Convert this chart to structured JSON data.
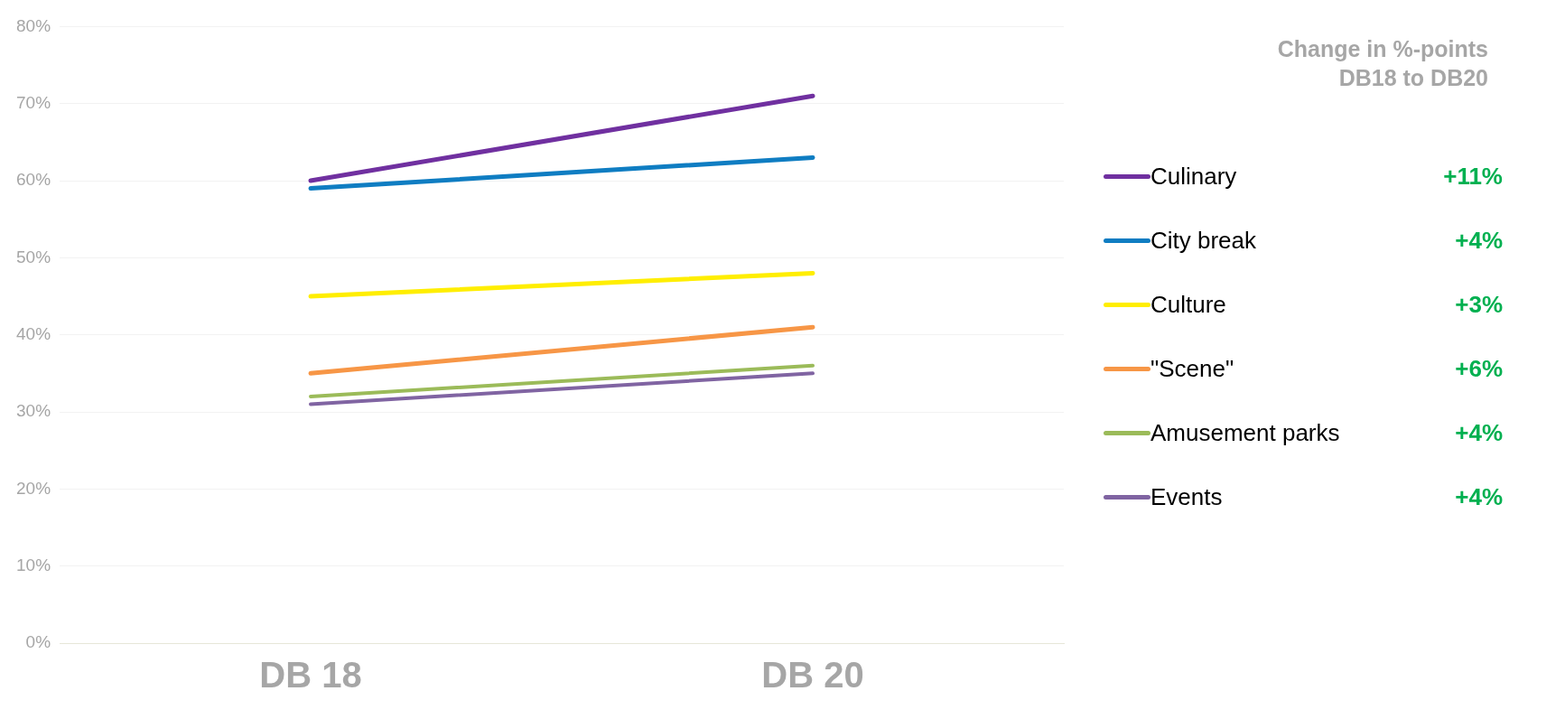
{
  "chart_data": {
    "type": "line",
    "categories": [
      "DB 18",
      "DB 20"
    ],
    "series": [
      {
        "name": "Culinary",
        "color": "#7030a0",
        "values": [
          60,
          71
        ]
      },
      {
        "name": "City break",
        "color": "#0f7dc2",
        "values": [
          59,
          63
        ]
      },
      {
        "name": "Culture",
        "color": "#ffee00",
        "values": [
          45,
          48
        ]
      },
      {
        "name": "\"Scene\"",
        "color": "#f79646",
        "values": [
          35,
          41
        ]
      },
      {
        "name": "Amusement parks",
        "color": "#9bbb59",
        "values": [
          32,
          36
        ]
      },
      {
        "name": "Events",
        "color": "#8064a2",
        "values": [
          31,
          35
        ]
      }
    ],
    "ylim": [
      0,
      80
    ],
    "yticks": [
      {
        "value": 0,
        "label": "0%"
      },
      {
        "value": 10,
        "label": "10%"
      },
      {
        "value": 20,
        "label": "20%"
      },
      {
        "value": 30,
        "label": "30%"
      },
      {
        "value": 40,
        "label": "40%"
      },
      {
        "value": 50,
        "label": "50%"
      },
      {
        "value": 60,
        "label": "60%"
      },
      {
        "value": 70,
        "label": "70%"
      },
      {
        "value": 80,
        "label": "80%"
      }
    ],
    "grid": "y",
    "legend": "right",
    "marker": "none",
    "line_style": "solid",
    "legend_title": "Change in %-points DB18 to DB20",
    "annotations": [
      "+11%",
      "+4%",
      "+3%",
      "+6%",
      "+4%",
      "+4%"
    ]
  }
}
